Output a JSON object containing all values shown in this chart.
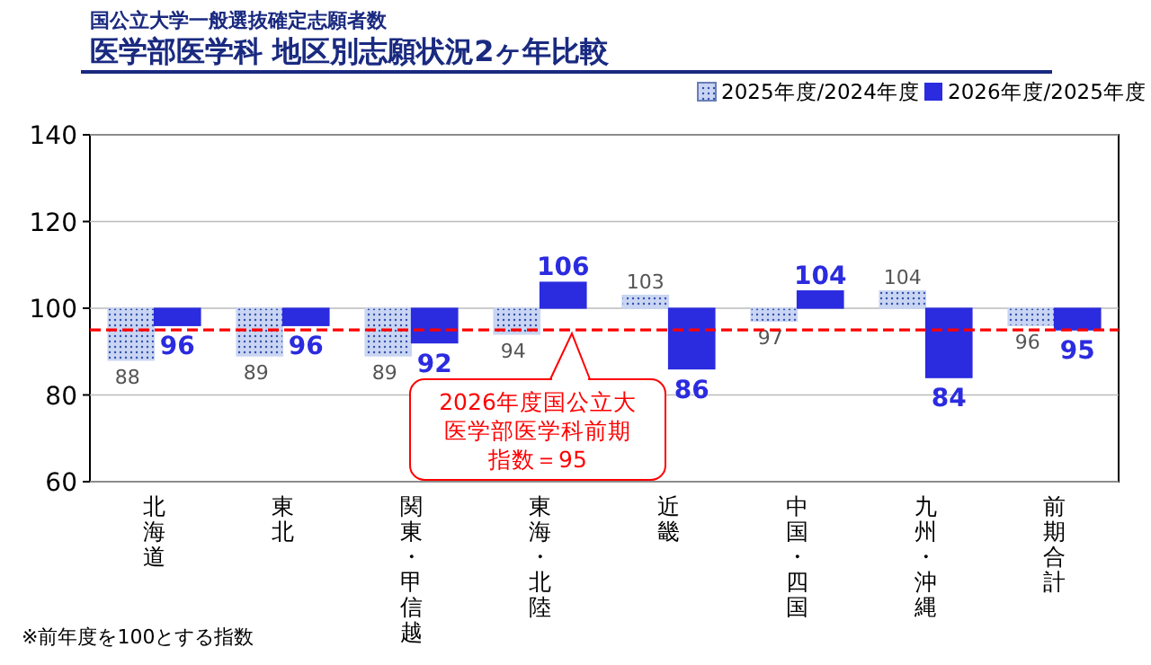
{
  "chart_data": {
    "type": "bar",
    "title": "医学部医学科 地区別志願状況2ヶ年比較",
    "subtitle": "国公立大学一般選抜確定志願者数",
    "categories": [
      "北海道",
      "東北",
      "関東・甲信越",
      "東海・北陸",
      "近畿",
      "中国・四国",
      "九州・沖縄",
      "前期合計"
    ],
    "series": [
      {
        "name": "2025年度/2024年度",
        "color": "#c9d5f2",
        "values": [
          -12,
          -11,
          -11,
          -6,
          3,
          -3,
          4,
          -4
        ],
        "base": [
          100,
          100,
          100,
          100,
          100,
          100,
          100,
          100
        ],
        "value_labels": [
          "88",
          "89",
          "89",
          "94",
          "103",
          "97",
          "104",
          "96"
        ]
      },
      {
        "name": "2026年度/2025年度",
        "color": "#2b2be0",
        "values": [
          -4,
          -4,
          -8,
          6,
          -14,
          4,
          -16,
          -5
        ],
        "base": [
          100,
          100,
          100,
          100,
          100,
          100,
          100,
          100
        ],
        "value_labels": [
          "96",
          "96",
          "92",
          "106",
          "86",
          "104",
          "84",
          "95"
        ]
      }
    ],
    "ylim": [
      60,
      140
    ],
    "yticks": [
      60,
      80,
      100,
      120,
      140
    ],
    "grid": "y",
    "legend": "top right",
    "ref_lines": [
      {
        "axis": "y",
        "value": 95,
        "label": "2026年度国公立大医学部医学科前期指数＝95",
        "color": "#ff0000",
        "line_style": "dashed"
      }
    ],
    "annotations": [
      "※前年度を100とする指数"
    ]
  }
}
